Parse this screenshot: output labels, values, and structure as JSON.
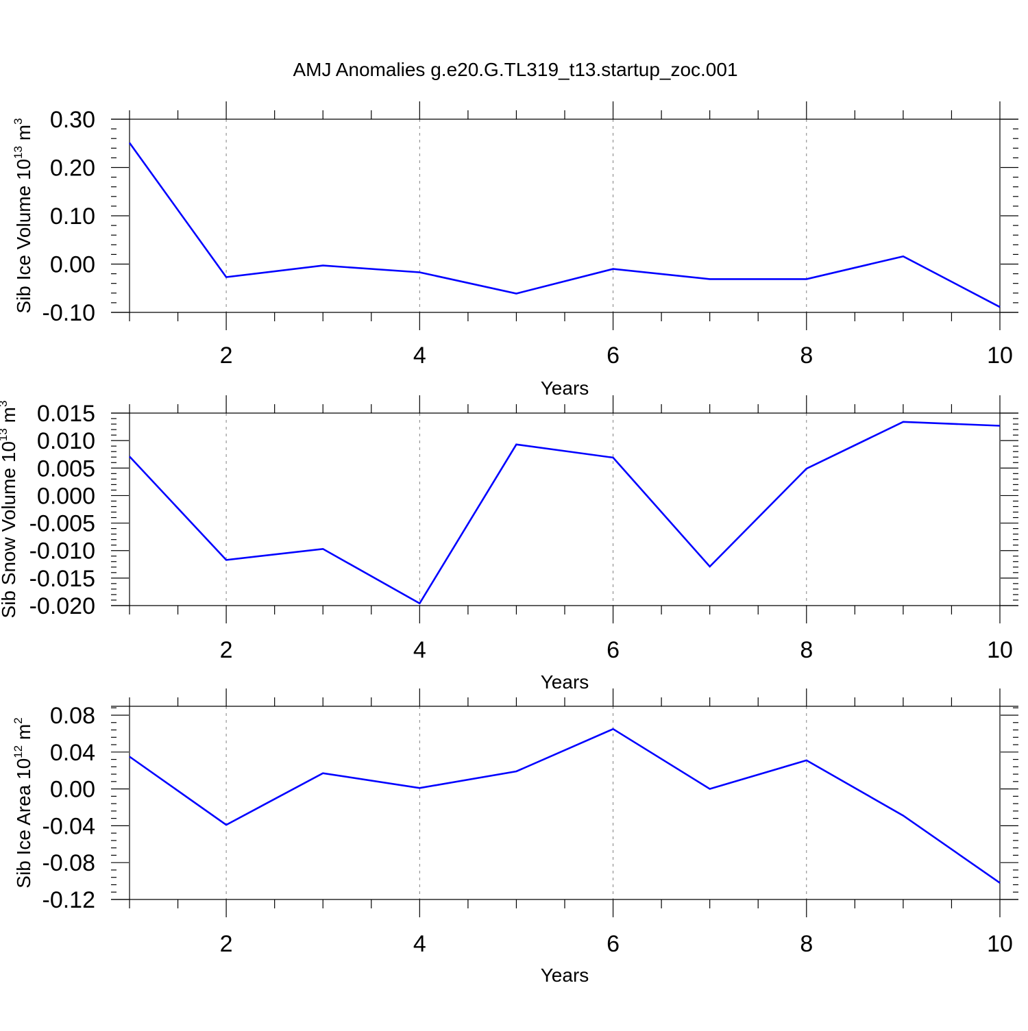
{
  "title": "AMJ Anomalies g.e20.G.TL319_t13.startup_zoc.001",
  "colors": {
    "line": "#0000ff",
    "axis": "#000000",
    "grid": "#808080",
    "background": "#ffffff"
  },
  "chart_data": [
    {
      "type": "line",
      "ylabel": {
        "base": "Sib Ice Volume 10",
        "exponent": "13",
        "unit": " m",
        "unit_exponent": "3"
      },
      "xlabel": "Years",
      "xlim": [
        1,
        10
      ],
      "ylim": [
        -0.1,
        0.3
      ],
      "y_ticks": [
        -0.1,
        0.0,
        0.1,
        0.2,
        0.3
      ],
      "y_tick_labels": [
        "-0.10",
        "0.00",
        "0.10",
        "0.20",
        "0.30"
      ],
      "x_ticks": [
        2,
        4,
        6,
        8,
        10
      ],
      "x_tick_labels": [
        "2",
        "4",
        "6",
        "8",
        "10"
      ],
      "grid": "vertical dashed at x ticks",
      "series": [
        {
          "x": [
            1,
            2,
            3,
            4,
            5,
            6,
            7,
            8,
            9,
            10
          ],
          "values": [
            0.251,
            -0.027,
            -0.003,
            -0.017,
            -0.061,
            -0.01,
            -0.031,
            -0.031,
            0.016,
            -0.089
          ]
        }
      ]
    },
    {
      "type": "line",
      "ylabel": {
        "base": "Sib Snow Volume 10",
        "exponent": "13",
        "unit": " m",
        "unit_exponent": "3"
      },
      "xlabel": "Years",
      "xlim": [
        1,
        10
      ],
      "ylim": [
        -0.02,
        0.015
      ],
      "y_ticks": [
        -0.02,
        -0.015,
        -0.01,
        -0.005,
        0.0,
        0.005,
        0.01,
        0.015
      ],
      "y_tick_labels": [
        "-0.020",
        "-0.015",
        "-0.010",
        "-0.005",
        "0.000",
        "0.005",
        "0.010",
        "0.015"
      ],
      "x_ticks": [
        2,
        4,
        6,
        8,
        10
      ],
      "x_tick_labels": [
        "2",
        "4",
        "6",
        "8",
        "10"
      ],
      "grid": "vertical dashed at x ticks",
      "series": [
        {
          "x": [
            1,
            2,
            3,
            4,
            5,
            6,
            7,
            8,
            9,
            10
          ],
          "values": [
            0.0071,
            -0.0117,
            -0.0097,
            -0.0196,
            0.0093,
            0.0069,
            -0.0129,
            0.0049,
            0.0134,
            0.0127
          ]
        }
      ]
    },
    {
      "type": "line",
      "ylabel": {
        "base": "Sib Ice Area 10",
        "exponent": "12",
        "unit": " m",
        "unit_exponent": "2"
      },
      "xlabel": "Years",
      "xlim": [
        1,
        10
      ],
      "ylim": [
        -0.12,
        0.09
      ],
      "y_ticks": [
        -0.12,
        -0.08,
        -0.04,
        0.0,
        0.04,
        0.08
      ],
      "y_tick_labels": [
        "-0.12",
        "-0.08",
        "-0.04",
        "0.00",
        "0.04",
        "0.08"
      ],
      "x_ticks": [
        2,
        4,
        6,
        8,
        10
      ],
      "x_tick_labels": [
        "2",
        "4",
        "6",
        "8",
        "10"
      ],
      "grid": "vertical dashed at x ticks",
      "series": [
        {
          "x": [
            1,
            2,
            3,
            4,
            5,
            6,
            7,
            8,
            9,
            10
          ],
          "values": [
            0.035,
            -0.039,
            0.017,
            0.001,
            0.019,
            0.065,
            0.0,
            0.031,
            -0.029,
            -0.102
          ]
        }
      ]
    }
  ]
}
